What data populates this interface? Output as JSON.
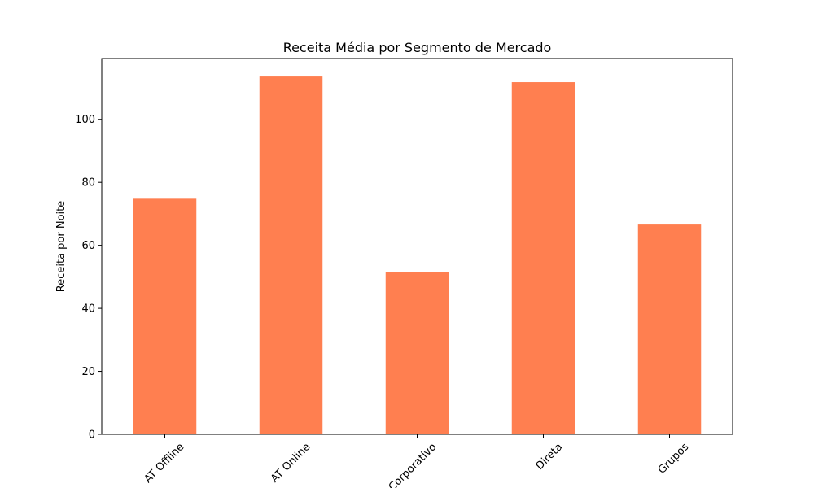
{
  "chart_data": {
    "type": "bar",
    "title": "Receita Média por Segmento de Mercado",
    "xlabel": "",
    "ylabel": "Receita por Noite",
    "categories": [
      "AT Offline",
      "AT Online",
      "Corporativo",
      "Direta",
      "Grupos"
    ],
    "values": [
      74.8,
      113.6,
      51.6,
      111.8,
      66.6
    ],
    "ylim": [
      0,
      119.3
    ],
    "yticks": [
      0,
      20,
      40,
      60,
      80,
      100
    ],
    "bar_color": "#ff7f50",
    "grid": false,
    "legend": "none"
  }
}
